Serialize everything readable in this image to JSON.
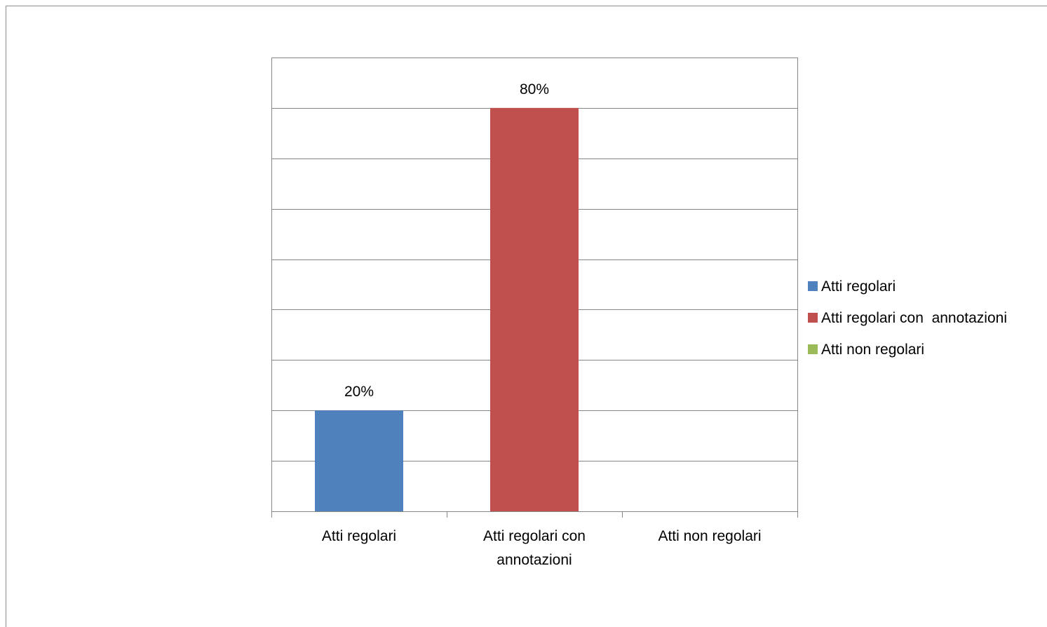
{
  "chart_data": {
    "type": "bar",
    "categories": [
      [
        "Atti regolari"
      ],
      [
        "Atti regolari con",
        "annotazioni"
      ],
      [
        "Atti non regolari"
      ]
    ],
    "values": [
      20,
      80,
      0
    ],
    "data_labels": [
      "20%",
      "80%",
      ""
    ],
    "colors": [
      "#4f81bd",
      "#c0504d",
      "#9bbb59"
    ],
    "ylim": [
      0,
      90
    ],
    "ytick_step": 10,
    "grid": true,
    "legend": {
      "position": "right",
      "entries": [
        {
          "label": "Atti regolari",
          "color": "#4f81bd"
        },
        {
          "label": "Atti regolari con  annotazioni",
          "color": "#c0504d"
        },
        {
          "label": "Atti non regolari",
          "color": "#9bbb59"
        }
      ]
    },
    "title": "",
    "xlabel": "",
    "ylabel": ""
  }
}
